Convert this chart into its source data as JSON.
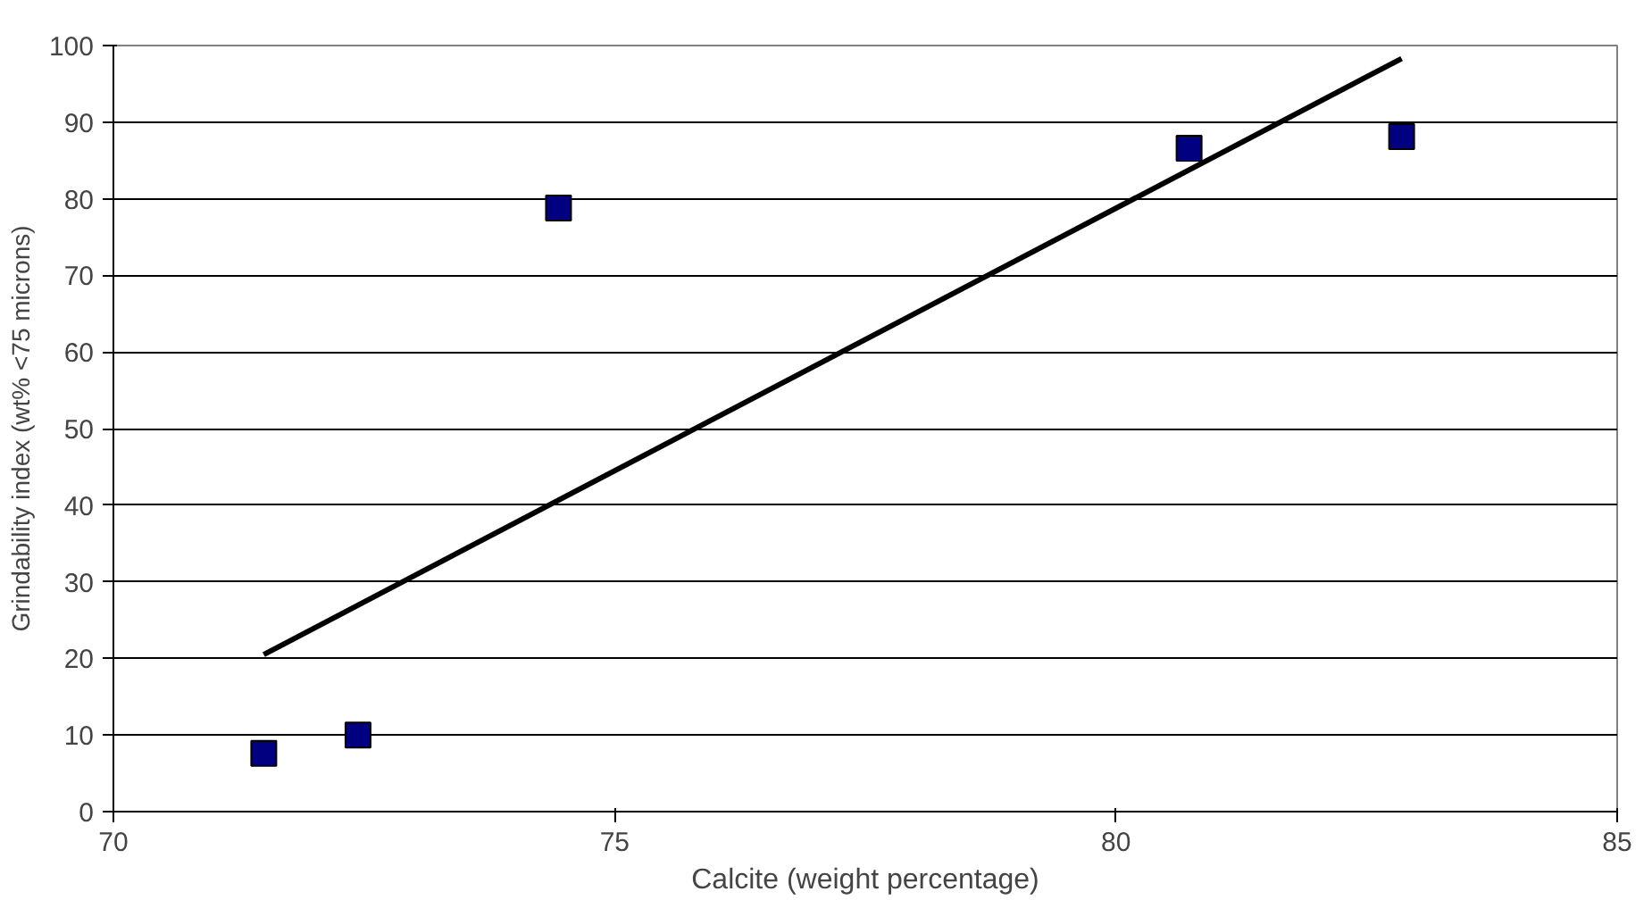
{
  "chart_data": {
    "type": "scatter",
    "xlabel": "Calcite (weight percentage)",
    "ylabel": "Grindability index (wt% <75 microns)",
    "xlim": [
      70,
      85
    ],
    "ylim": [
      0,
      100
    ],
    "xticks": [
      70,
      75,
      80,
      85
    ],
    "yticks": [
      0,
      10,
      20,
      30,
      40,
      50,
      60,
      70,
      80,
      90,
      100
    ],
    "grid": "y",
    "series": [
      {
        "color": "#000080",
        "marker": "square",
        "x": [
          71.5,
          72.44,
          74.44,
          80.73,
          82.85
        ],
        "values": [
          7.6,
          10.0,
          78.8,
          86.6,
          88.1
        ]
      },
      {
        "type": "line",
        "color": "#000000",
        "marker": "none",
        "x": [
          71.5,
          82.85
        ],
        "values": [
          20.5,
          98.3
        ]
      }
    ]
  }
}
